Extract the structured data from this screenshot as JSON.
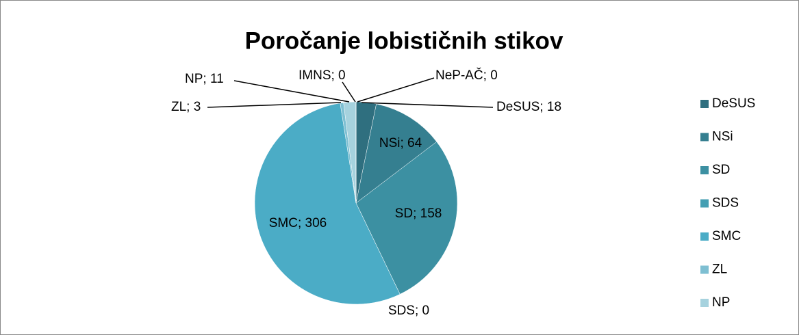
{
  "chart_data": {
    "type": "pie",
    "title": "Poročanje lobističnih stikov",
    "categories": [
      "DeSUS",
      "NSi",
      "SD",
      "SDS",
      "SMC",
      "ZL",
      "NP",
      "IMNS",
      "NeP-AČ"
    ],
    "values": [
      18,
      64,
      158,
      0,
      306,
      3,
      11,
      0,
      0
    ],
    "value_labels": [
      "DeSUS; 18",
      "NSi; 64",
      "SD; 158",
      "SDS; 0",
      "SMC; 306",
      "ZL; 3",
      "NP; 11",
      "IMNS; 0",
      "NeP-AČ; 0"
    ],
    "colors": [
      "#2f6f7f",
      "#357f90",
      "#3c90a2",
      "#449fb3",
      "#4bacc6",
      "#7ebfd2",
      "#a6d2de",
      "#c0dfe8",
      "#d3e8ef"
    ],
    "legend": "right"
  }
}
